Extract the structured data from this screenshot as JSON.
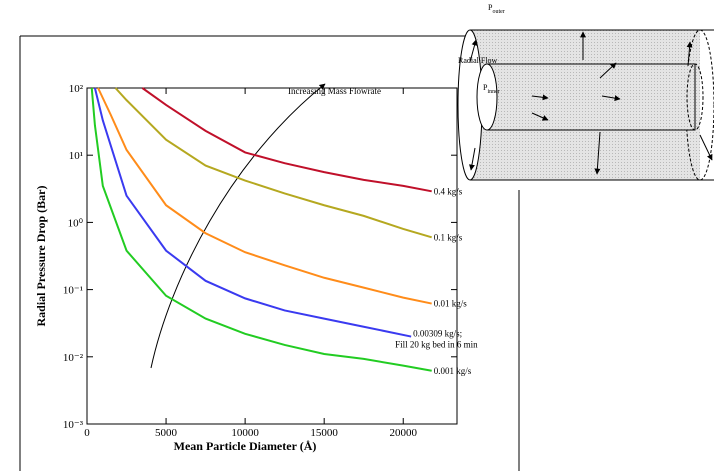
{
  "chart_data": {
    "type": "line",
    "xlabel": "Mean Particle Diameter (Å)",
    "ylabel": "Radial Pressure Drop (Bar)",
    "annotation": "Increasing Mass Flowrate",
    "log_y": true,
    "xlim": [
      0,
      23400
    ],
    "ylim": [
      0.001,
      100
    ],
    "xticks": [
      0,
      5000,
      10000,
      15000,
      20000
    ],
    "yticks": [
      {
        "value": 100,
        "label": "10²"
      },
      {
        "value": 10,
        "label": "10¹"
      },
      {
        "value": 1,
        "label": "10⁰"
      },
      {
        "value": 0.1,
        "label": "10⁻¹"
      },
      {
        "value": 0.01,
        "label": "10⁻²"
      },
      {
        "value": 0.001,
        "label": "10⁻³"
      }
    ],
    "series": [
      {
        "name": "0.4 kg/s",
        "color": "#c0102a",
        "x": [
          3500,
          5000,
          7500,
          10000,
          12500,
          15000,
          17500,
          20000,
          21800
        ],
        "values": [
          100,
          56,
          23,
          11,
          7.6,
          5.6,
          4.3,
          3.5,
          2.9
        ]
      },
      {
        "name": "0.1 kg/s",
        "color": "#b5a820",
        "x": [
          1800,
          2500,
          5000,
          7500,
          10000,
          12500,
          15000,
          17500,
          20000,
          21800
        ],
        "values": [
          100,
          66,
          17,
          7,
          4.2,
          2.7,
          1.8,
          1.25,
          0.8,
          0.6
        ]
      },
      {
        "name": "0.01 kg/s",
        "color": "#ff8c1a",
        "x": [
          700,
          1500,
          2500,
          5000,
          7500,
          10000,
          12500,
          15000,
          17500,
          20000,
          21800
        ],
        "values": [
          100,
          40,
          12,
          1.8,
          0.69,
          0.36,
          0.23,
          0.15,
          0.107,
          0.076,
          0.062
        ]
      },
      {
        "name": "0.00309 kg/s;",
        "note": "Fill 20 kg bed in 6 min",
        "color": "#3a3af0",
        "x": [
          500,
          1000,
          2500,
          5000,
          7500,
          10000,
          12500,
          15000,
          17500,
          20500
        ],
        "values": [
          100,
          33,
          2.5,
          0.38,
          0.135,
          0.074,
          0.049,
          0.037,
          0.028,
          0.02
        ]
      },
      {
        "name": "0.001 kg/s",
        "color": "#22cc22",
        "x": [
          300,
          500,
          1000,
          2500,
          5000,
          7500,
          10000,
          12500,
          15000,
          17500,
          20000,
          21800
        ],
        "values": [
          100,
          28,
          3.5,
          0.38,
          0.081,
          0.037,
          0.022,
          0.015,
          0.011,
          0.0093,
          0.0074,
          0.0062
        ]
      }
    ]
  },
  "diagram": {
    "outer": {
      "main": "P",
      "sub": "outer"
    },
    "flow": "Radial Flow",
    "inner": {
      "main": "P",
      "sub": "inner"
    }
  }
}
